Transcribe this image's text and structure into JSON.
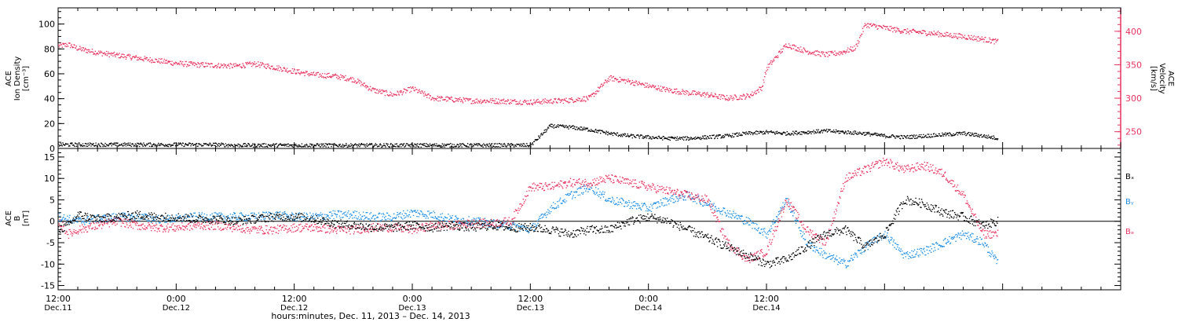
{
  "chart_data": [
    {
      "type": "scatter",
      "panel": "top",
      "ylabel_left": [
        "ACE",
        "Ion Density",
        "[cm⁻³]"
      ],
      "ylabel_right": [
        "ACE",
        "Velocity",
        "[km/s]"
      ],
      "ylim_left": [
        0,
        113
      ],
      "ylim_right": [
        225,
        435
      ],
      "yticks_left": [
        0,
        20,
        40,
        60,
        80,
        100
      ],
      "yticks_right": [
        250,
        300,
        350,
        400
      ],
      "colors": {
        "density": "#000000",
        "velocity": "#e8335f"
      },
      "series": [
        {
          "axis": "left",
          "hours": [
            0,
            2,
            4,
            6,
            8,
            10,
            12,
            14,
            16,
            18,
            20,
            22,
            24,
            26,
            28,
            30,
            32,
            34,
            36,
            38,
            40,
            42,
            44,
            46,
            48,
            50,
            52,
            54,
            56,
            58,
            60,
            62,
            64,
            66,
            68,
            70,
            72,
            74,
            76,
            78,
            80,
            82,
            84,
            86,
            88,
            90,
            92,
            94,
            95.5
          ],
          "values": [
            3,
            3,
            3,
            3,
            3,
            3,
            3,
            3,
            3,
            2.5,
            2.5,
            2.5,
            2.5,
            2.5,
            2.5,
            2.5,
            2.5,
            2.5,
            2.5,
            2.5,
            2.5,
            2.5,
            2.5,
            2.5,
            2.5,
            18,
            17,
            15,
            12,
            10,
            9,
            8,
            8,
            9,
            10,
            12,
            13,
            12,
            13,
            14,
            13,
            12,
            10,
            9,
            10,
            11,
            12,
            10,
            8
          ]
        },
        {
          "axis": "right",
          "hours": [
            0,
            1,
            2,
            4,
            6,
            8,
            10,
            12,
            14,
            16,
            18,
            20,
            22,
            24,
            26,
            28,
            30,
            32,
            34,
            36,
            38,
            40,
            42,
            44,
            46,
            48,
            49,
            51,
            52,
            54,
            56,
            58,
            60,
            62,
            64,
            66,
            68,
            70,
            70.5,
            71.5,
            72,
            74,
            76,
            78,
            79.5,
            81,
            82,
            84,
            86,
            88,
            90,
            92,
            94,
            95.5
          ],
          "values": [
            378,
            380,
            374,
            368,
            364,
            360,
            356,
            352,
            350,
            349,
            348,
            351,
            346,
            340,
            335,
            333,
            328,
            312,
            305,
            314,
            300,
            298,
            296,
            296,
            295,
            294,
            295,
            296,
            297,
            300,
            330,
            325,
            318,
            312,
            308,
            305,
            300,
            303,
            306,
            316,
            345,
            380,
            370,
            365,
            368,
            375,
            410,
            405,
            400,
            398,
            395,
            392,
            388,
            384
          ]
        }
      ]
    },
    {
      "type": "scatter",
      "panel": "bottom",
      "ylabel_left": [
        "ACE",
        "B",
        "[nT]"
      ],
      "ylim": [
        -16,
        17
      ],
      "yticks": [
        -15,
        -10,
        -5,
        0,
        5,
        10,
        15
      ],
      "zero_line": true,
      "legend": [
        "Bₓ",
        "Bᵧ",
        "Bₔ"
      ],
      "colors": {
        "bx": "#000000",
        "by": "#1f8fe5",
        "bz": "#e8335f"
      },
      "series": [
        {
          "hours": [
            0,
            1,
            2,
            4,
            6,
            8,
            10,
            12,
            14,
            16,
            18,
            20,
            22,
            24,
            26,
            28,
            30,
            32,
            34,
            36,
            38,
            40,
            42,
            44,
            46,
            48,
            50,
            52,
            54,
            56,
            58,
            60,
            62,
            64,
            66,
            68,
            70,
            72,
            74,
            76,
            78,
            80,
            82,
            84,
            86,
            88,
            90,
            92,
            94,
            95.5
          ],
          "values": [
            -2,
            -1,
            1.5,
            0.5,
            1,
            1.5,
            1,
            1,
            0.5,
            0.5,
            0,
            0.5,
            1,
            1,
            0.5,
            -0.5,
            -1,
            -1.5,
            -1.5,
            -1,
            -1.5,
            -1,
            -1.5,
            -1,
            -1.5,
            -1.5,
            -2,
            -3,
            -2,
            -2,
            0,
            1,
            0,
            -2,
            -4,
            -6,
            -8,
            -10,
            -9,
            -6,
            -3,
            -2,
            -6,
            -3,
            5,
            4,
            2,
            1,
            -1,
            0
          ]
        },
        {
          "hours": [
            0,
            2,
            4,
            6,
            8,
            10,
            12,
            14,
            16,
            18,
            20,
            22,
            24,
            26,
            28,
            30,
            32,
            34,
            36,
            38,
            40,
            42,
            44,
            46,
            48,
            50,
            52,
            54,
            56,
            58,
            60,
            62,
            64,
            66,
            68,
            70,
            72,
            74,
            76,
            78,
            80,
            82,
            84,
            86,
            88,
            90,
            92,
            94,
            95.5
          ],
          "values": [
            1,
            0,
            0.5,
            1,
            1,
            0.5,
            0.5,
            1,
            1,
            1,
            1,
            1.5,
            1,
            1,
            1.5,
            1.5,
            1,
            1,
            2,
            1.5,
            0.5,
            0,
            -0.5,
            -1,
            -2,
            3,
            6,
            8,
            5,
            4,
            3,
            5,
            6,
            4,
            2,
            0,
            -3,
            5,
            -5,
            -8,
            -10,
            -6,
            -3,
            -8,
            -7,
            -5,
            -3,
            -5,
            -10
          ]
        },
        {
          "hours": [
            0,
            1,
            2,
            4,
            6,
            8,
            10,
            12,
            14,
            16,
            18,
            20,
            22,
            24,
            26,
            28,
            30,
            32,
            34,
            36,
            38,
            40,
            42,
            44,
            46,
            48,
            50,
            52,
            54,
            56,
            58,
            60,
            62,
            64,
            66,
            68,
            70,
            72,
            74,
            76,
            78,
            80,
            82,
            84,
            86,
            88,
            90,
            92,
            94,
            95.5
          ],
          "values": [
            0,
            -3,
            -2,
            -1,
            0,
            -1,
            -1.5,
            -1.5,
            -1,
            -1,
            -1.5,
            -2,
            -2,
            -1.5,
            -1.5,
            -2,
            -2,
            -1.5,
            -1.5,
            -2,
            -1,
            -1,
            -0.5,
            -0.5,
            0,
            8,
            8,
            9,
            9,
            10,
            9,
            8,
            7,
            6,
            5,
            -5,
            -9,
            -7,
            5,
            -2,
            -5,
            10,
            12,
            14,
            12,
            13,
            11,
            6,
            -3,
            -3
          ]
        }
      ]
    },
    {
      "type": "axis",
      "xlim_hours": [
        0,
        108
      ],
      "xticks": [
        {
          "hour": 0,
          "time": "12:00",
          "date": "Dec.11"
        },
        {
          "hour": 12,
          "time": "0:00",
          "date": "Dec.12"
        },
        {
          "hour": 24,
          "time": "12:00",
          "date": "Dec.12"
        },
        {
          "hour": 36,
          "time": "0:00",
          "date": "Dec.13"
        },
        {
          "hour": 48,
          "time": "12:00",
          "date": "Dec.13"
        },
        {
          "hour": 60,
          "time": "0:00",
          "date": "Dec.14"
        },
        {
          "hour": 72,
          "time": "12:00",
          "date": "Dec.14"
        }
      ],
      "xlabel": "hours:minutes, Dec. 11, 2013 – Dec. 14, 2013"
    }
  ]
}
